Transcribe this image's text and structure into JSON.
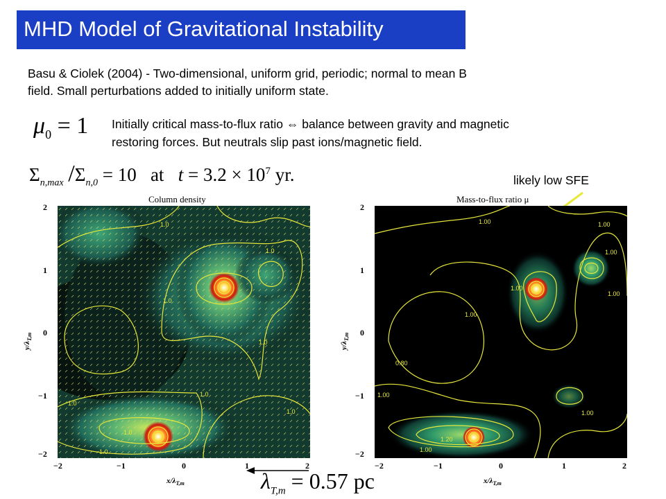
{
  "title": "MHD Model of Gravitational Instability",
  "intro": {
    "line1": "Basu & Ciolek (2004) -  Two-dimensional, uniform grid, periodic; normal to mean B",
    "line2": "field. Small perturbations added to initially uniform state."
  },
  "mu_eq": {
    "symbol": "μ",
    "sub": "0",
    "rhs": "= 1"
  },
  "critical": {
    "line1": "Initially critical mass-to-flux ratio ⇔ balance between gravity and magnetic",
    "line2": "restoring forces. But neutrals slip past ions/magnetic field."
  },
  "sigma_eq": {
    "num": "Σ",
    "num_sub": "n,max",
    "den": "Σ",
    "den_sub": "n,0",
    "eq": "= 10",
    "at": "at",
    "t": "t",
    "rhs": "= 3.2 × 10",
    "exp": "7",
    "unit": "yr."
  },
  "annotation": "likely low SFE",
  "plots": {
    "left_title": "Column density",
    "right_title": "Mass-to-flux ratio μ",
    "x_ticks": [
      "−2",
      "−1",
      "0",
      "1",
      "2"
    ],
    "y_ticks": [
      "2",
      "1",
      "0",
      "−1",
      "−2"
    ],
    "x_label": "x/λ",
    "x_label_sub": "T,m",
    "y_label": "y/λ",
    "y_label_sub": "T,m",
    "left_contours": [
      "1.0",
      "1.0",
      "1.0",
      "1.0",
      "1.0",
      "1.0",
      "1.0",
      "1.0",
      "1.0"
    ],
    "right_contours": [
      "1.00",
      "1.00",
      "1.00",
      "1.00",
      "1.00",
      "1.00",
      "1.00",
      "1.00",
      "1.00",
      "0.80",
      "1.20"
    ]
  },
  "lambda_eq": {
    "symbol": "λ",
    "sub": "T,m",
    "rhs": "= 0.57 pc"
  },
  "colors": {
    "title_bg": "#1a3ec4",
    "contour": "#e8e83a",
    "arrow": "#e8e83a"
  }
}
